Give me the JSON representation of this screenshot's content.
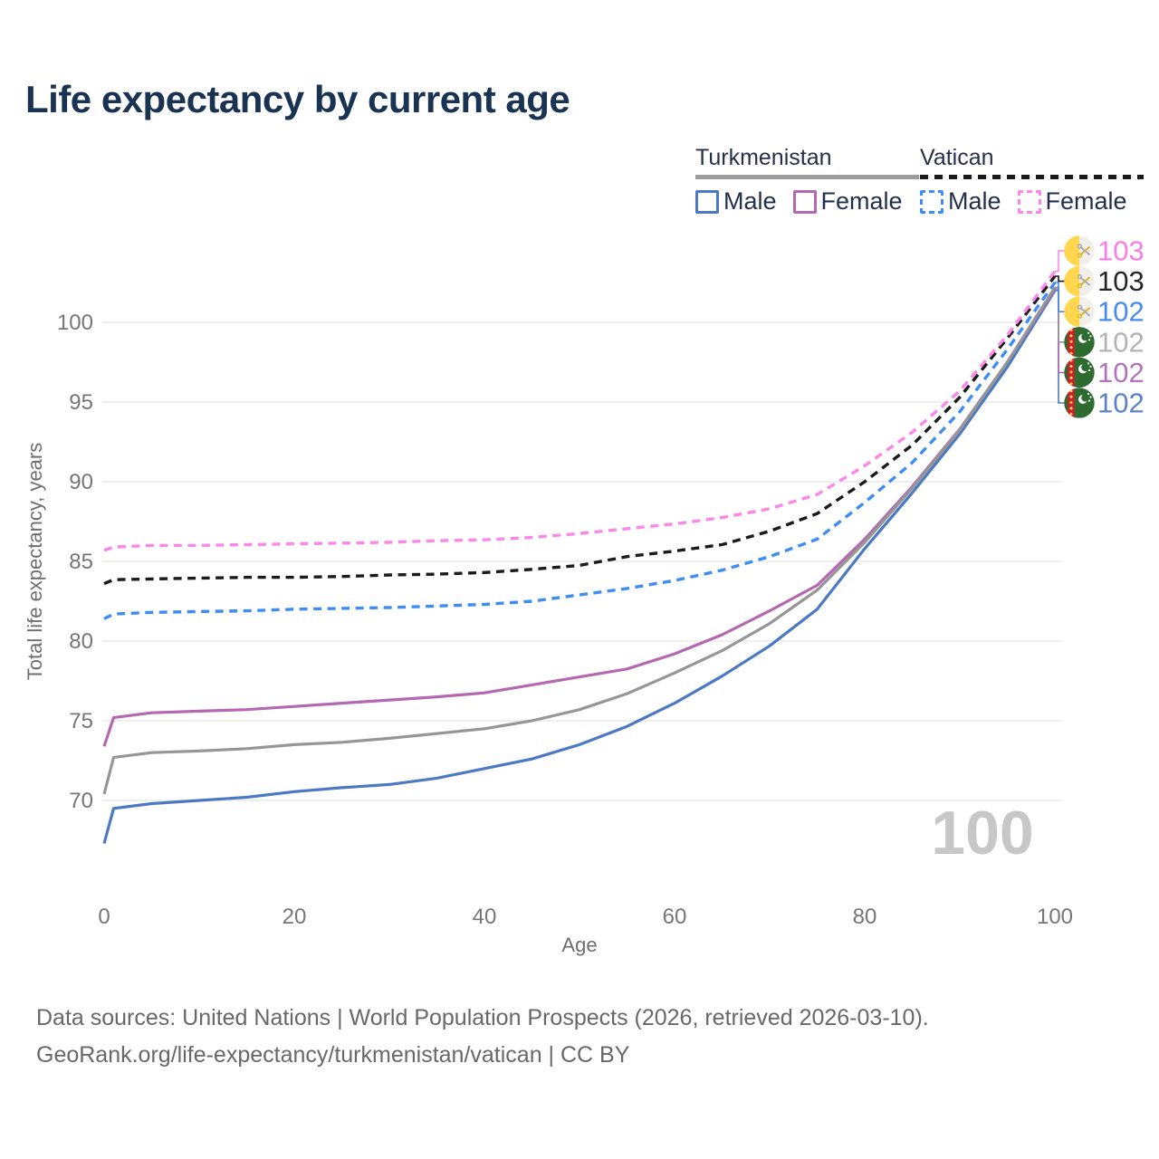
{
  "title": "Life expectancy by current age",
  "legend": {
    "groups": [
      {
        "label": "Turkmenistan",
        "line_style": "solid",
        "underline_color": "#9c9c9c",
        "items": [
          {
            "label": "Male",
            "color": "#4c79c4",
            "dashed": false
          },
          {
            "label": "Female",
            "color": "#b468b2",
            "dashed": false
          }
        ]
      },
      {
        "label": "Vatican",
        "line_style": "dashed",
        "underline_color": "#1b1b1b",
        "items": [
          {
            "label": "Male",
            "color": "#3f8df4",
            "dashed": true
          },
          {
            "label": "Female",
            "color": "#fb87e9",
            "dashed": true
          }
        ]
      }
    ]
  },
  "axes": {
    "x": {
      "title": "Age",
      "ticks": [
        0,
        20,
        40,
        60,
        80,
        100
      ]
    },
    "y": {
      "title": "Total life expectancy, years",
      "ticks": [
        70,
        75,
        80,
        85,
        90,
        95,
        100
      ]
    }
  },
  "hover_age_indicator": "100",
  "chart_data": {
    "type": "line",
    "title": "Life expectancy by current age",
    "xlabel": "Age",
    "ylabel": "Total life expectancy, years",
    "x_range": [
      0,
      100
    ],
    "y_ticks": [
      70,
      75,
      80,
      85,
      90,
      95,
      100
    ],
    "grid": "horizontal",
    "legend_position": "top-right",
    "ages": [
      0,
      1,
      5,
      10,
      15,
      20,
      25,
      30,
      35,
      40,
      45,
      50,
      55,
      60,
      65,
      70,
      75,
      80,
      85,
      90,
      95,
      100
    ],
    "series": [
      {
        "id": "turkmenistan-male",
        "name": "Turkmenistan Male",
        "color": "#4c79c4",
        "dashed": false,
        "flag": "turkmenistan",
        "values": [
          67.3,
          69.5,
          69.8,
          70.0,
          70.2,
          70.55,
          70.8,
          71.0,
          71.4,
          72.0,
          72.6,
          73.5,
          74.65,
          76.1,
          77.8,
          79.7,
          82.0,
          85.8,
          89.3,
          93.0,
          97.2,
          102.0
        ],
        "end_label": "102",
        "end_label_color": "#5d81c9",
        "label_row": 5
      },
      {
        "id": "turkmenistan-female",
        "name": "Turkmenistan Female",
        "color": "#b468b2",
        "dashed": false,
        "flag": "turkmenistan",
        "values": [
          73.4,
          75.2,
          75.5,
          75.6,
          75.7,
          75.9,
          76.1,
          76.3,
          76.5,
          76.75,
          77.25,
          77.75,
          78.25,
          79.2,
          80.4,
          81.9,
          83.5,
          86.4,
          89.7,
          93.3,
          97.5,
          102.1
        ],
        "end_label": "102",
        "end_label_color": "#b373ba",
        "label_row": 4
      },
      {
        "id": "turkmenistan-all",
        "name": "Turkmenistan",
        "color": "#969696",
        "dashed": false,
        "flag": "turkmenistan",
        "values": [
          70.4,
          72.7,
          73.0,
          73.1,
          73.25,
          73.5,
          73.65,
          73.9,
          74.2,
          74.5,
          75.0,
          75.7,
          76.7,
          78.0,
          79.4,
          81.1,
          83.2,
          86.2,
          89.6,
          93.25,
          97.5,
          102.2
        ],
        "end_label": "102",
        "end_label_color": "#b3b3b3",
        "label_row": 3
      },
      {
        "id": "vatican-male",
        "name": "Vatican Male",
        "color": "#3f8df4",
        "dashed": true,
        "flag": "vatican",
        "values": [
          81.4,
          81.7,
          81.8,
          81.85,
          81.9,
          82.0,
          82.05,
          82.1,
          82.2,
          82.3,
          82.5,
          82.9,
          83.3,
          83.8,
          84.45,
          85.3,
          86.4,
          88.7,
          91.2,
          94.4,
          98.3,
          102.5
        ],
        "end_label": "102",
        "end_label_color": "#478bf2",
        "label_row": 2
      },
      {
        "id": "vatican-all",
        "name": "Vatican",
        "color": "#1b1b1b",
        "dashed": true,
        "flag": "vatican",
        "values": [
          83.6,
          83.85,
          83.9,
          83.95,
          84.0,
          84.0,
          84.05,
          84.15,
          84.2,
          84.3,
          84.5,
          84.75,
          85.3,
          85.65,
          86.05,
          86.9,
          88.0,
          90.0,
          92.3,
          95.3,
          99.0,
          102.9
        ],
        "end_label": "103",
        "end_label_color": "#262626",
        "label_row": 1
      },
      {
        "id": "vatican-female",
        "name": "Vatican Female",
        "color": "#fb87e9",
        "dashed": true,
        "flag": "vatican",
        "values": [
          85.7,
          85.9,
          86.0,
          86.0,
          86.05,
          86.1,
          86.15,
          86.2,
          86.3,
          86.35,
          86.5,
          86.75,
          87.05,
          87.35,
          87.75,
          88.3,
          89.2,
          91.0,
          93.1,
          95.7,
          99.2,
          103.2
        ],
        "end_label": "103",
        "end_label_color": "#fa7de6",
        "label_row": 0
      }
    ]
  },
  "footer": {
    "line1": "Data sources: United Nations | World Population Prospects (2026, retrieved 2026-03-10).",
    "line2": "GeoRank.org/life-expectancy/turkmenistan/vatican | CC BY"
  }
}
